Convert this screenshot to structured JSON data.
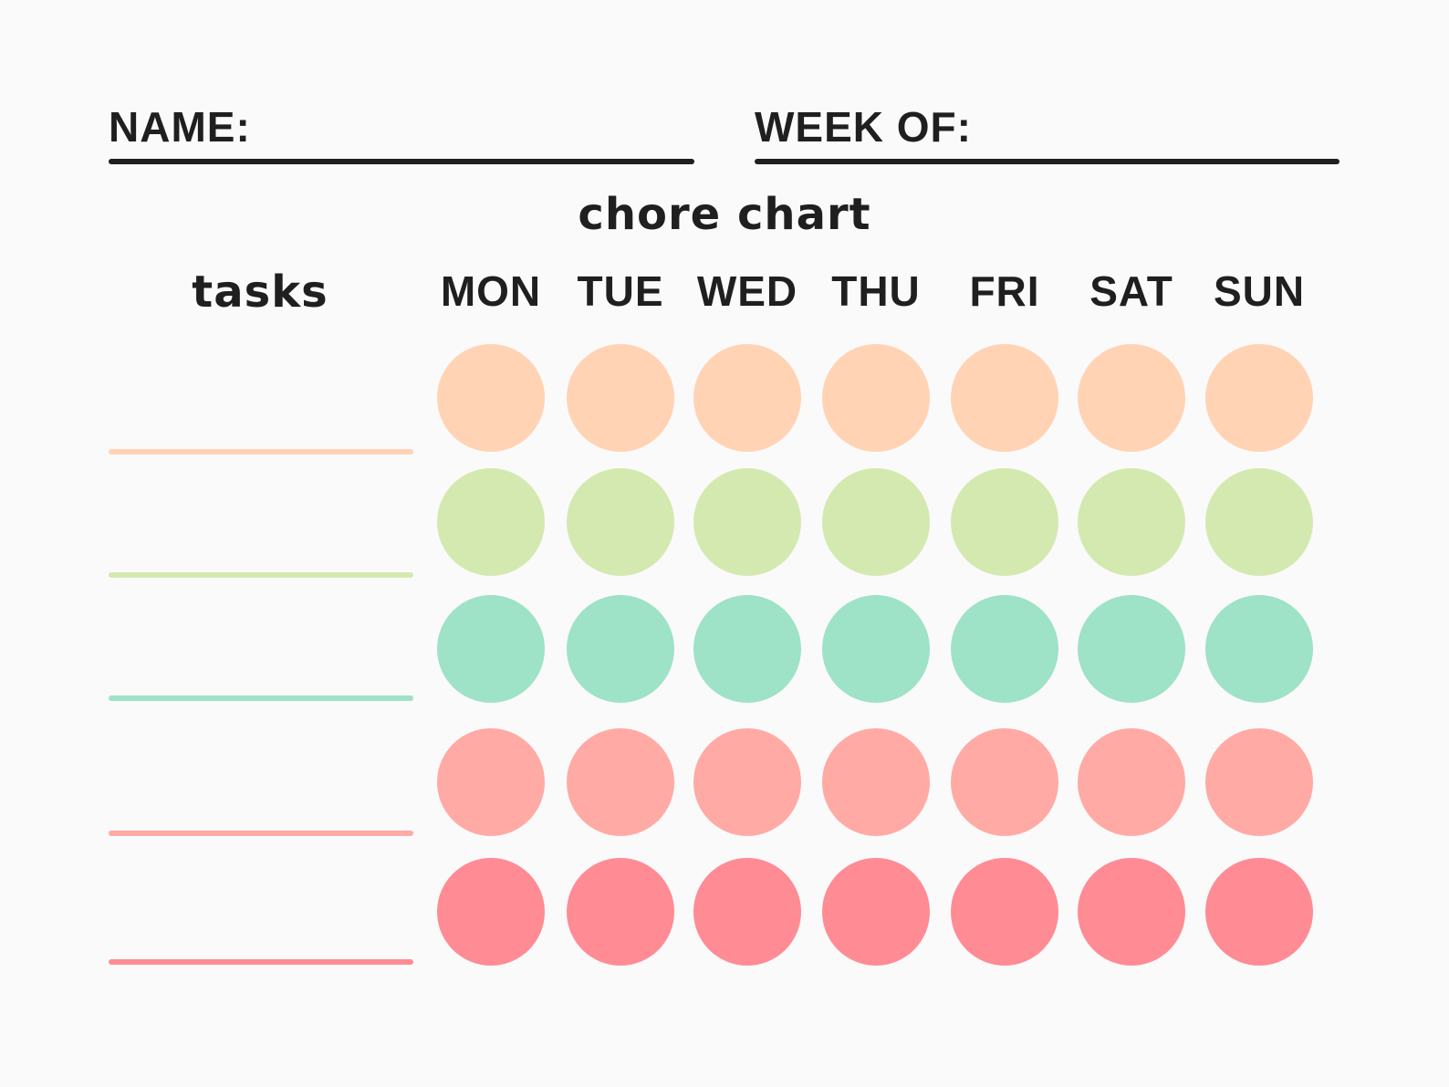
{
  "header": {
    "name_label": "NAME:",
    "week_label": "WEEK OF:"
  },
  "title": "chore chart",
  "tasks_header": "tasks",
  "days": [
    "MON",
    "TUE",
    "WED",
    "THU",
    "FRI",
    "SAT",
    "SUN"
  ],
  "task_rows": [
    {
      "color": "#ffd3b4"
    },
    {
      "color": "#d4e9b0"
    },
    {
      "color": "#9ee2c7"
    },
    {
      "color": "#ffaaa5"
    },
    {
      "color": "#ff8b94"
    }
  ],
  "colors": {
    "ink": "#1f1f1f",
    "background": "#fafafa"
  }
}
